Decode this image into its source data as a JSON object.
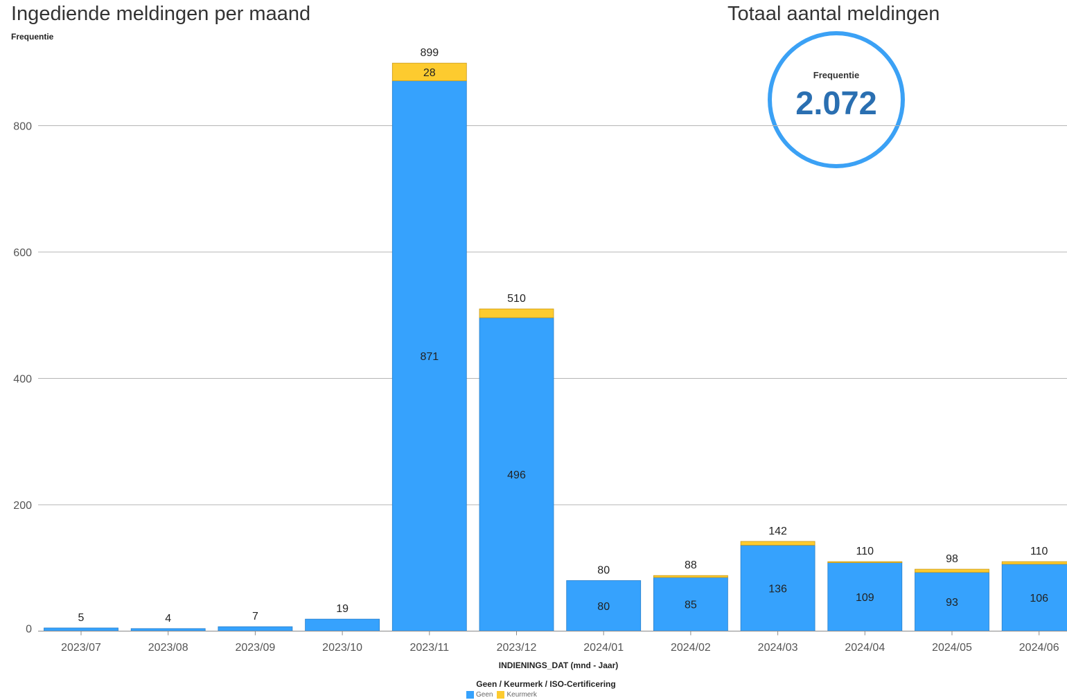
{
  "chart_title": "Ingediende meldingen per maand",
  "kpi": {
    "title": "Totaal aantal meldingen",
    "label": "Frequentie",
    "value": "2.072"
  },
  "legend": {
    "title": "Geen / Keurmerk / ISO-Certificering"
  },
  "colors": {
    "Geen": "#36a2fd",
    "Keurmerk": "#fdcb2f",
    "kpi_ring": "#3ba1f5",
    "kpi_value": "#2a6fb1",
    "gridline": "#b5b5b5"
  },
  "chart_data": {
    "type": "bar",
    "stacked": true,
    "title": "Ingediende meldingen per maand",
    "ylabel": "Frequentie",
    "xlabel": "INDIENINGS_DAT (mnd - Jaar)",
    "ylim": [
      0,
      900
    ],
    "yticks": [
      0,
      200,
      400,
      600,
      800
    ],
    "grid": true,
    "legend_position": "bottom",
    "categories": [
      "2023/07",
      "2023/08",
      "2023/09",
      "2023/10",
      "2023/11",
      "2023/12",
      "2024/01",
      "2024/02",
      "2024/03",
      "2024/04",
      "2024/05",
      "2024/06"
    ],
    "series": [
      {
        "name": "Geen",
        "values": [
          5,
          4,
          7,
          19,
          871,
          496,
          80,
          85,
          136,
          109,
          93,
          106
        ]
      },
      {
        "name": "Keurmerk",
        "values": [
          0,
          0,
          0,
          0,
          28,
          14,
          0,
          3,
          6,
          1,
          5,
          4
        ]
      }
    ],
    "totals": [
      5,
      4,
      7,
      19,
      899,
      510,
      80,
      88,
      142,
      110,
      98,
      110
    ],
    "segment_labels": {
      "Geen": [
        "",
        "",
        "",
        "",
        "871",
        "496",
        "80",
        "85",
        "136",
        "109",
        "93",
        "106"
      ],
      "Keurmerk": [
        "",
        "",
        "",
        "",
        "28",
        "",
        "",
        "",
        "",
        "",
        "",
        ""
      ]
    }
  }
}
